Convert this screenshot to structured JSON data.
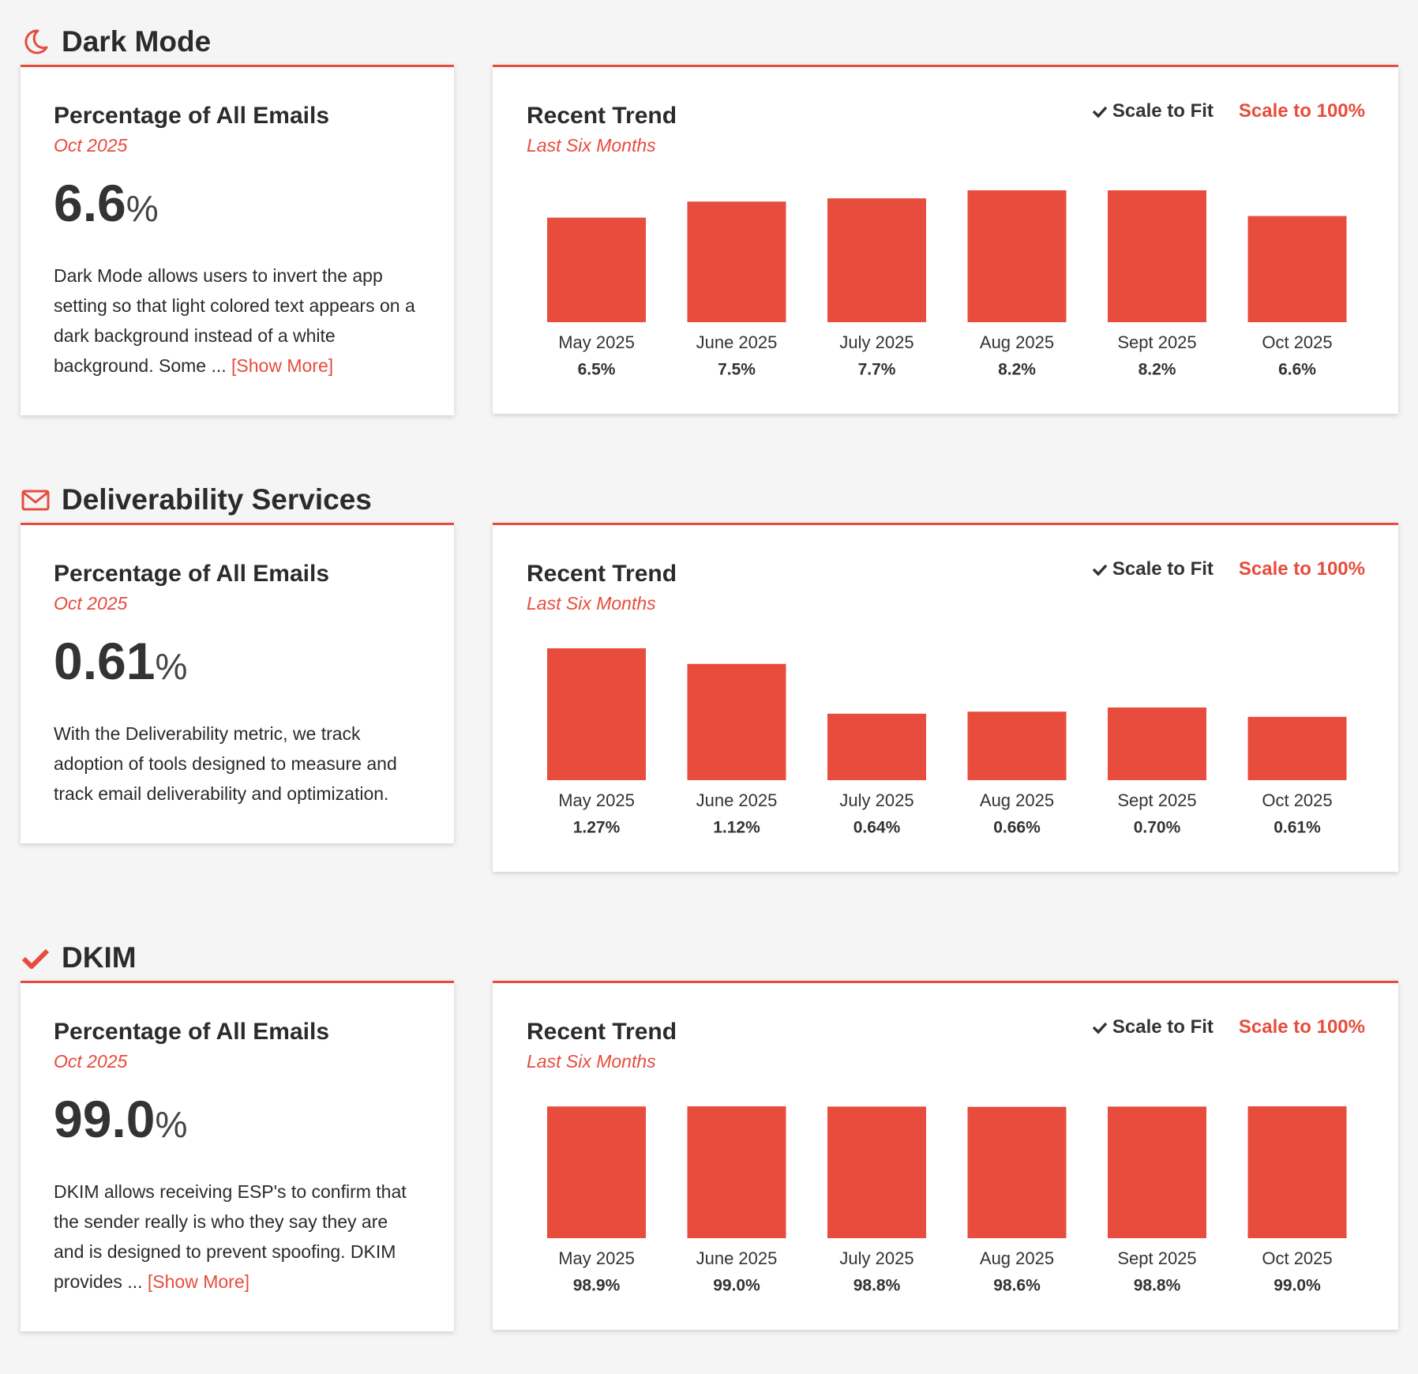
{
  "sections": [
    {
      "title": "Dark Mode",
      "card": {
        "heading": "Percentage of All Emails",
        "period": "Oct 2025",
        "value": "6.6",
        "unit": "%",
        "description": "Dark Mode allows users to invert the app setting so that light colored text appears on a dark background instead of a white background. Some ...",
        "show_more": "[Show More]"
      },
      "trend": {
        "title": "Recent Trend",
        "subtitle": "Last Six Months",
        "scale_to_fit": "Scale to Fit",
        "scale_to_100": "Scale to 100%"
      }
    },
    {
      "title": "Deliverability Services",
      "card": {
        "heading": "Percentage of All Emails",
        "period": "Oct 2025",
        "value": "0.61",
        "unit": "%",
        "description": "With the Deliverability metric, we track adoption of tools designed to measure and track email deliverability and optimization."
      },
      "trend": {
        "title": "Recent Trend",
        "subtitle": "Last Six Months",
        "scale_to_fit": "Scale to Fit",
        "scale_to_100": "Scale to 100%"
      }
    },
    {
      "title": "DKIM",
      "card": {
        "heading": "Percentage of All Emails",
        "period": "Oct 2025",
        "value": "99.0",
        "unit": "%",
        "description": "DKIM allows receiving ESP's to confirm that the sender really is who they say they are and is designed to prevent spoofing. DKIM provides ...",
        "show_more": "[Show More]"
      },
      "trend": {
        "title": "Recent Trend",
        "subtitle": "Last Six Months",
        "scale_to_fit": "Scale to Fit",
        "scale_to_100": "Scale to 100%"
      }
    }
  ],
  "chart_data": [
    {
      "type": "bar",
      "color": "#e74c3c",
      "categories": [
        "May 2025",
        "June 2025",
        "July 2025",
        "Aug 2025",
        "Sept 2025",
        "Oct 2025"
      ],
      "values": [
        6.5,
        7.5,
        7.7,
        8.2,
        8.2,
        6.6
      ],
      "value_labels": [
        "6.5%",
        "7.5%",
        "7.7%",
        "8.2%",
        "8.2%",
        "6.6%"
      ]
    },
    {
      "type": "bar",
      "color": "#e74c3c",
      "categories": [
        "May 2025",
        "June 2025",
        "July 2025",
        "Aug 2025",
        "Sept 2025",
        "Oct 2025"
      ],
      "values": [
        1.27,
        1.12,
        0.64,
        0.66,
        0.7,
        0.61
      ],
      "value_labels": [
        "1.27%",
        "1.12%",
        "0.64%",
        "0.66%",
        "0.70%",
        "0.61%"
      ]
    },
    {
      "type": "bar",
      "color": "#e74c3c",
      "categories": [
        "May 2025",
        "June 2025",
        "July 2025",
        "Aug 2025",
        "Sept 2025",
        "Oct 2025"
      ],
      "values": [
        98.9,
        99.0,
        98.8,
        98.6,
        98.8,
        99.0
      ],
      "value_labels": [
        "98.9%",
        "99.0%",
        "98.8%",
        "98.6%",
        "98.8%",
        "99.0%"
      ]
    }
  ]
}
